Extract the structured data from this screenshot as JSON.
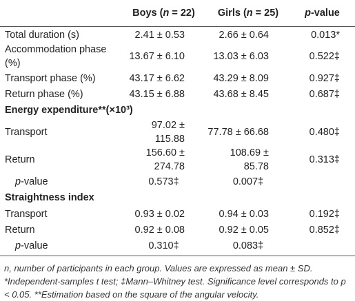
{
  "table": {
    "columns": [
      [
        "Boys (",
        "n",
        " = 22)"
      ],
      [
        "Girls (",
        "n",
        " = 25)"
      ],
      [
        "p",
        "-value"
      ]
    ],
    "rows": [
      {
        "label": "Total duration (s)",
        "cells": [
          "2.41 ± 0.53",
          "2.66 ± 0.64",
          "0.013*"
        ]
      },
      {
        "label": "Accommodation phase (%)",
        "cells": [
          "13.67 ± 6.10",
          "13.03 ± 6.03",
          "0.522‡"
        ]
      },
      {
        "label": "Transport phase (%)",
        "cells": [
          "43.17 ± 6.62",
          "43.29 ± 8.09",
          "0.927‡"
        ]
      },
      {
        "label": "Return phase (%)",
        "cells": [
          "43.15 ± 6.88",
          "43.68 ± 8.45",
          "0.687‡"
        ]
      },
      {
        "section": "Energy expenditure**(×10³)"
      },
      {
        "label": "Transport",
        "cells": [
          "97.02 ± 115.88",
          "77.78 ± 66.68",
          "0.480‡"
        ]
      },
      {
        "label": "Return",
        "cells": [
          "156.60 ± 274.78",
          "108.69 ± 85.78",
          "0.313‡"
        ]
      },
      {
        "label": [
          "p",
          "-value"
        ],
        "cells": [
          "0.573‡",
          "0.007‡"
        ]
      },
      {
        "section": "Straightness index"
      },
      {
        "label": "Transport",
        "cells": [
          "0.93 ± 0.02",
          "0.94 ± 0.03",
          "0.192‡"
        ]
      },
      {
        "label": "Return",
        "cells": [
          "0.92 ± 0.08",
          "0.92 ± 0.05",
          "0.852‡"
        ]
      },
      {
        "label": [
          "p",
          "-value"
        ],
        "cells": [
          "0.310‡",
          "0.083‡"
        ]
      }
    ]
  },
  "footnote": "n, number of participants in each group. Values are expressed as mean ± SD. *Independent-samples t test; ‡Mann–Whitney test. Significance level corresponds to p < 0.05. **Estimation based on the square of the angular velocity."
}
